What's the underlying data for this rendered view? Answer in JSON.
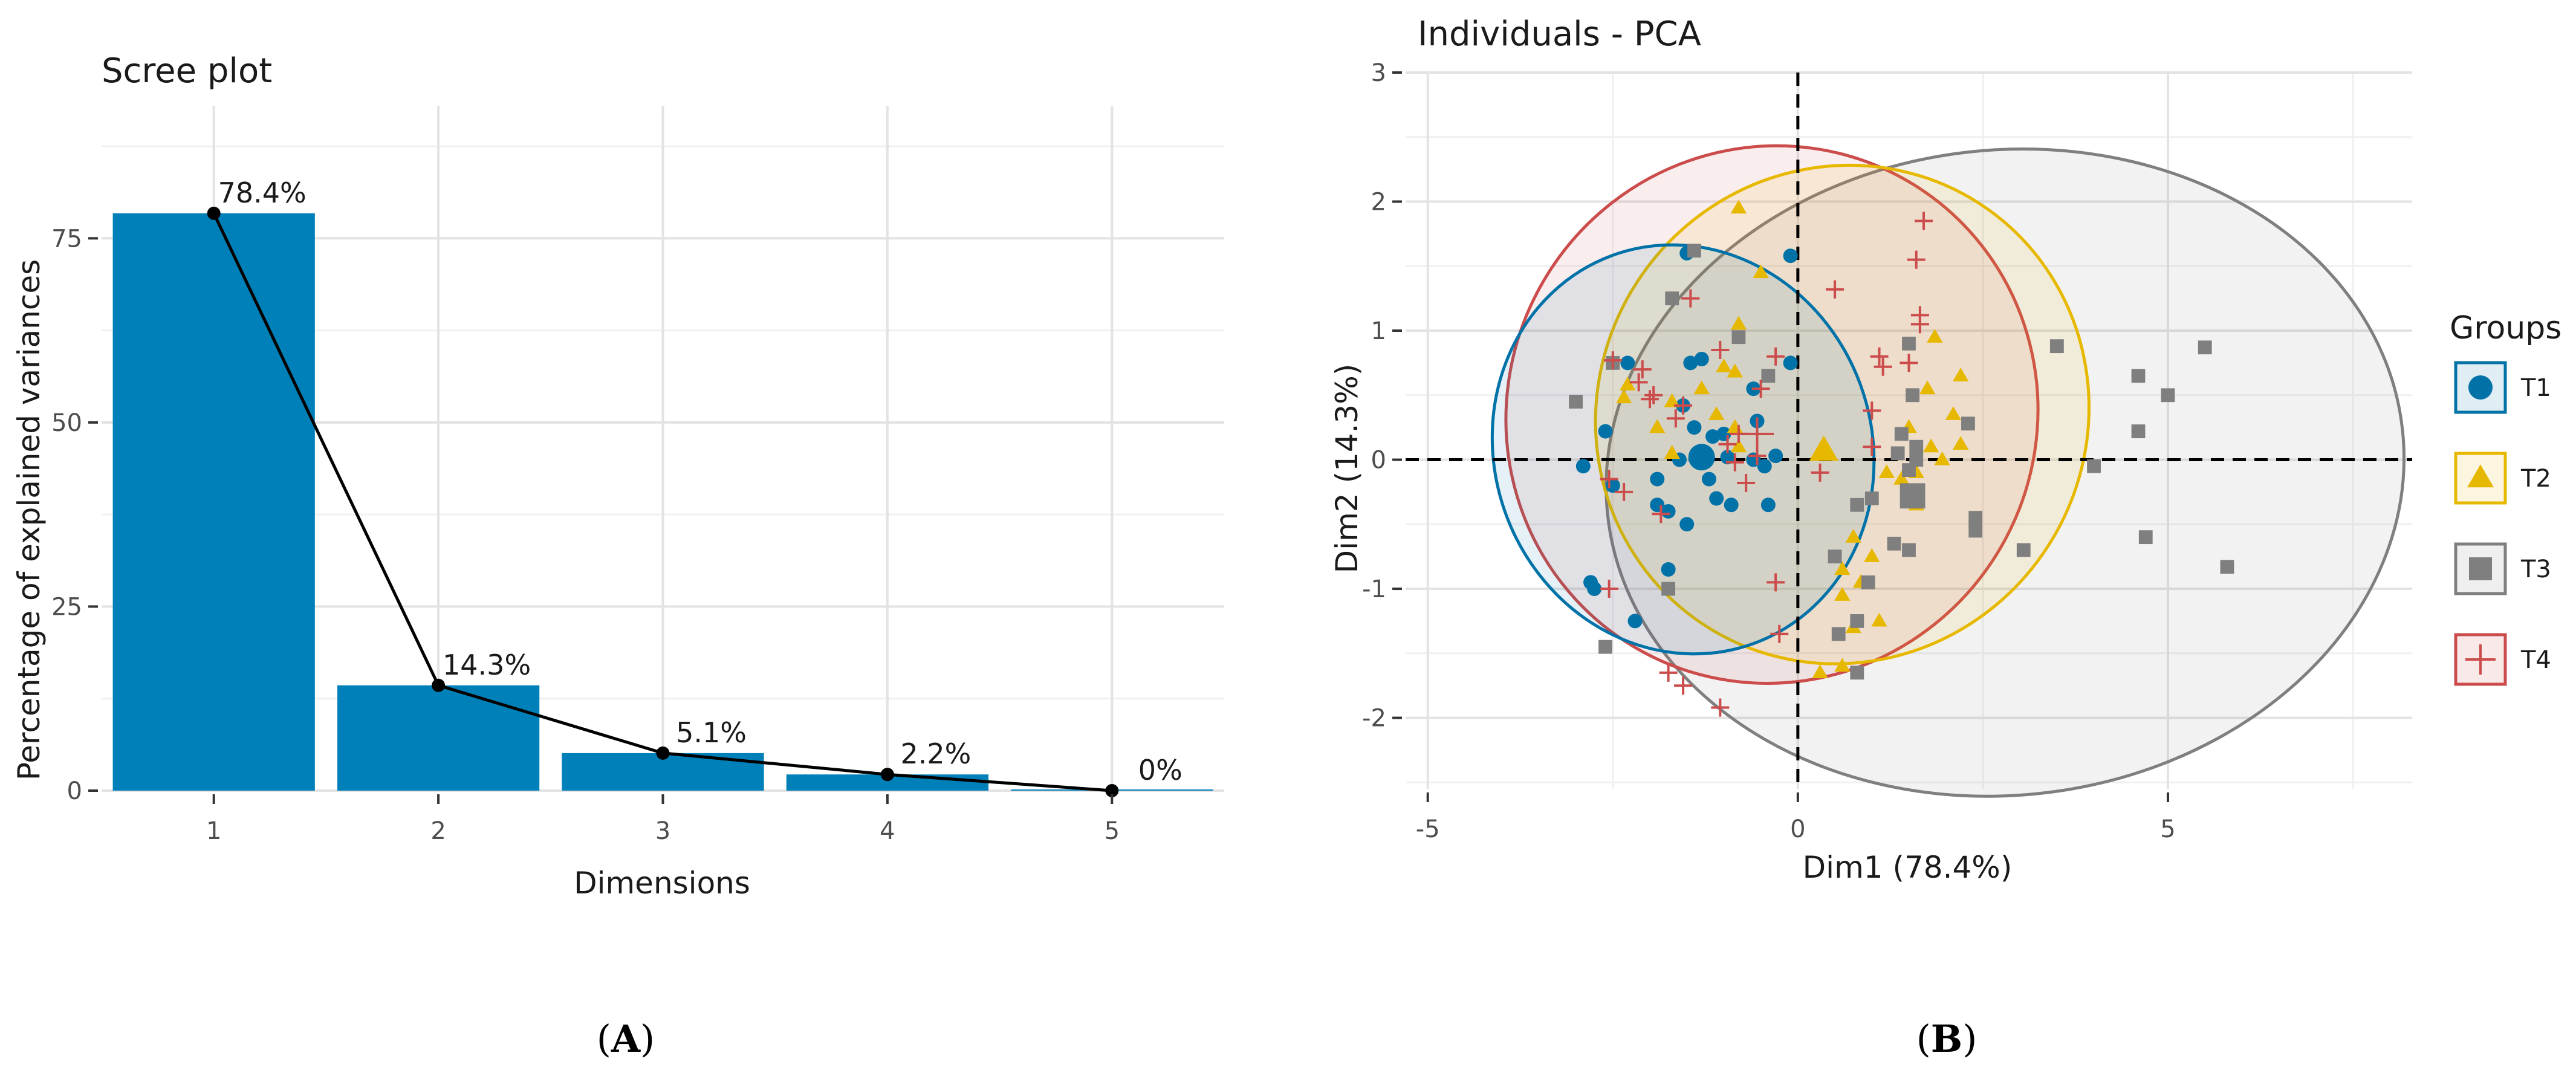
{
  "chart_data": [
    {
      "type": "bar",
      "title": "Scree plot",
      "xlabel": "Dimensions",
      "ylabel": "Percentage of explained variances",
      "categories": [
        "1",
        "2",
        "3",
        "4",
        "5"
      ],
      "values": [
        78.4,
        14.3,
        5.1,
        2.2,
        0
      ],
      "value_labels": [
        "78.4%",
        "14.3%",
        "5.1%",
        "2.2%",
        "0%"
      ],
      "yticks": [
        0,
        25,
        50,
        75
      ],
      "ytick_labels": [
        "0",
        "25",
        "50",
        "75"
      ],
      "ylim": [
        0,
        93
      ],
      "bar_color": "#0080B8",
      "line_color": "#000000",
      "panel_label": "(A)",
      "panel_letter": "A"
    },
    {
      "type": "scatter",
      "title": "Individuals - PCA",
      "xlabel": "Dim1 (78.4%)",
      "ylabel": "Dim2 (14.3%)",
      "xlim": [
        -5.3,
        8.3
      ],
      "ylim": [
        -2.55,
        3.0
      ],
      "xticks": [
        -5,
        0,
        5
      ],
      "xtick_labels": [
        "-5",
        "0",
        "5"
      ],
      "yticks": [
        -2,
        -1,
        0,
        1,
        2,
        3
      ],
      "ytick_labels": [
        "-2",
        "-1",
        "0",
        "1",
        "2",
        "3"
      ],
      "legend_title": "Groups",
      "legend_position": "right",
      "panel_label": "(B)",
      "panel_letter": "B",
      "groups": [
        {
          "name": "T1",
          "color": "#0072A8",
          "shape": "circle",
          "centroid": [
            -1.3,
            0.02
          ],
          "ellipse": {
            "cx": -1.55,
            "cy": 0.08,
            "rx": 2.55,
            "ry": 1.6,
            "angle": 20
          },
          "points": [
            [
              -2.8,
              -0.95
            ],
            [
              -2.75,
              -1.0
            ],
            [
              -2.2,
              -1.25
            ],
            [
              -1.75,
              -0.85
            ],
            [
              -1.9,
              -0.35
            ],
            [
              -1.75,
              -0.4
            ],
            [
              -1.5,
              -0.5
            ],
            [
              -2.5,
              -0.2
            ],
            [
              -2.6,
              0.22
            ],
            [
              -2.9,
              -0.05
            ],
            [
              -1.4,
              0.25
            ],
            [
              -1.3,
              0.05
            ],
            [
              -1.15,
              0.18
            ],
            [
              -1.0,
              0.2
            ],
            [
              -0.95,
              0.02
            ],
            [
              -1.2,
              -0.15
            ],
            [
              -1.1,
              -0.3
            ],
            [
              -0.9,
              -0.35
            ],
            [
              -0.6,
              0.0
            ],
            [
              -0.45,
              -0.05
            ],
            [
              -0.4,
              -0.35
            ],
            [
              -0.55,
              0.3
            ],
            [
              -1.6,
              0.0
            ],
            [
              -1.55,
              0.42
            ],
            [
              -1.45,
              0.75
            ],
            [
              -1.3,
              0.78
            ],
            [
              -2.3,
              0.75
            ],
            [
              -0.1,
              0.75
            ],
            [
              -0.1,
              1.58
            ],
            [
              -1.5,
              1.6
            ],
            [
              -0.6,
              0.55
            ],
            [
              -0.3,
              0.03
            ],
            [
              -1.9,
              -0.15
            ]
          ]
        },
        {
          "name": "T2",
          "color": "#E7B800",
          "shape": "triangle",
          "centroid": [
            0.35,
            0.07
          ],
          "ellipse": {
            "cx": 0.6,
            "cy": 0.35,
            "rx": 3.3,
            "ry": 1.95,
            "angle": -35
          },
          "points": [
            [
              -0.8,
              1.95
            ],
            [
              -0.5,
              1.45
            ],
            [
              -0.8,
              1.05
            ],
            [
              -1.0,
              0.72
            ],
            [
              -0.85,
              0.68
            ],
            [
              -1.3,
              0.55
            ],
            [
              -1.7,
              0.45
            ],
            [
              -1.9,
              0.25
            ],
            [
              -2.3,
              0.58
            ],
            [
              -2.35,
              0.48
            ],
            [
              -0.85,
              0.25
            ],
            [
              -1.1,
              0.35
            ],
            [
              -0.8,
              0.1
            ],
            [
              -1.7,
              0.05
            ],
            [
              1.75,
              0.55
            ],
            [
              1.85,
              0.95
            ],
            [
              2.1,
              0.35
            ],
            [
              2.2,
              0.12
            ],
            [
              1.8,
              0.1
            ],
            [
              1.95,
              0.0
            ],
            [
              1.5,
              0.25
            ],
            [
              1.6,
              -0.1
            ],
            [
              1.4,
              -0.15
            ],
            [
              1.6,
              -0.35
            ],
            [
              1.2,
              -0.1
            ],
            [
              1.0,
              -0.75
            ],
            [
              0.6,
              -0.85
            ],
            [
              0.85,
              -0.95
            ],
            [
              0.6,
              -1.05
            ],
            [
              0.75,
              -1.3
            ],
            [
              1.1,
              -1.25
            ],
            [
              0.6,
              -1.6
            ],
            [
              0.3,
              -1.65
            ],
            [
              0.75,
              -0.6
            ],
            [
              2.2,
              0.65
            ]
          ]
        },
        {
          "name": "T3",
          "color": "#7F7F7F",
          "shape": "square",
          "centroid": [
            1.55,
            -0.28
          ],
          "ellipse": {
            "cx": 2.8,
            "cy": -0.1,
            "rx": 5.4,
            "ry": 2.5,
            "angle": 6
          },
          "points": [
            [
              -3.0,
              0.45
            ],
            [
              -2.5,
              0.75
            ],
            [
              -1.7,
              1.25
            ],
            [
              -1.4,
              1.62
            ],
            [
              -2.6,
              -1.45
            ],
            [
              -1.75,
              -1.0
            ],
            [
              -0.8,
              0.95
            ],
            [
              -0.4,
              0.65
            ],
            [
              3.5,
              0.88
            ],
            [
              4.6,
              0.65
            ],
            [
              5.0,
              0.5
            ],
            [
              5.5,
              0.87
            ],
            [
              4.6,
              0.22
            ],
            [
              4.0,
              -0.05
            ],
            [
              4.7,
              -0.6
            ],
            [
              5.8,
              -0.83
            ],
            [
              3.05,
              -0.7
            ],
            [
              2.4,
              -0.55
            ],
            [
              2.3,
              0.28
            ],
            [
              2.4,
              -0.45
            ],
            [
              1.6,
              0.1
            ],
            [
              1.5,
              -0.08
            ],
            [
              1.35,
              0.05
            ],
            [
              1.4,
              0.2
            ],
            [
              1.55,
              0.5
            ],
            [
              1.5,
              0.9
            ],
            [
              1.0,
              -0.3
            ],
            [
              0.8,
              -0.35
            ],
            [
              1.3,
              -0.65
            ],
            [
              0.95,
              -0.95
            ],
            [
              0.5,
              -0.75
            ],
            [
              1.5,
              -0.7
            ],
            [
              0.8,
              -1.25
            ],
            [
              0.8,
              -1.65
            ],
            [
              0.55,
              -1.35
            ],
            [
              1.6,
              0.0
            ]
          ]
        },
        {
          "name": "T4",
          "color": "#CC4C4C",
          "shape": "plus",
          "centroid": [
            -0.55,
            0.2
          ],
          "ellipse": {
            "cx": -0.35,
            "cy": 0.35,
            "rx": 3.65,
            "ry": 2.05,
            "angle": 60
          },
          "points": [
            [
              1.7,
              1.85
            ],
            [
              1.6,
              1.55
            ],
            [
              0.5,
              1.32
            ],
            [
              1.65,
              1.12
            ],
            [
              1.65,
              1.05
            ],
            [
              1.1,
              0.8
            ],
            [
              1.15,
              0.72
            ],
            [
              1.5,
              0.75
            ],
            [
              1.0,
              0.38
            ],
            [
              -0.5,
              0.55
            ],
            [
              -0.3,
              0.8
            ],
            [
              -1.05,
              0.85
            ],
            [
              -1.45,
              1.25
            ],
            [
              -2.5,
              0.77
            ],
            [
              -2.1,
              0.7
            ],
            [
              -2.15,
              0.6
            ],
            [
              -1.95,
              0.5
            ],
            [
              -2.0,
              0.47
            ],
            [
              -1.55,
              0.42
            ],
            [
              -1.65,
              0.32
            ],
            [
              -0.95,
              0.12
            ],
            [
              -0.8,
              0.2
            ],
            [
              -0.55,
              0.03
            ],
            [
              -0.7,
              -0.18
            ],
            [
              -0.85,
              -0.02
            ],
            [
              -1.85,
              -0.42
            ],
            [
              -2.35,
              -0.25
            ],
            [
              -2.55,
              -0.15
            ],
            [
              -2.55,
              -1.0
            ],
            [
              -1.75,
              -1.65
            ],
            [
              -1.55,
              -1.75
            ],
            [
              -1.05,
              -1.92
            ],
            [
              -0.3,
              -0.95
            ],
            [
              -0.25,
              -1.35
            ],
            [
              1.0,
              0.1
            ],
            [
              0.3,
              -0.1
            ]
          ]
        }
      ]
    }
  ]
}
